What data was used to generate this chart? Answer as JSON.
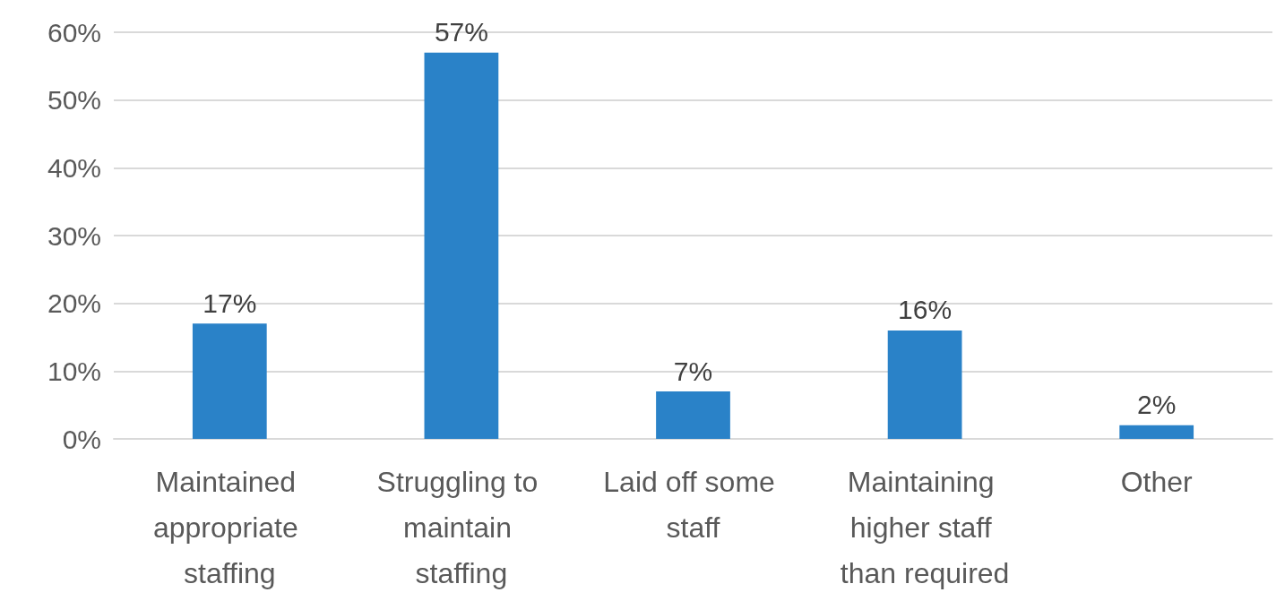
{
  "chart_data": {
    "type": "bar",
    "categories": [
      "Maintained appropriate staffing",
      "Struggling to maintain staffing",
      "Laid off some staff",
      "Maintaining higher staff than required",
      "Other"
    ],
    "values": [
      17,
      57,
      7,
      16,
      2
    ],
    "color": "#2a82c8",
    "value_labels": [
      "17%",
      "57%",
      "7%",
      "16%",
      "2%"
    ],
    "ylim": [
      0,
      60
    ],
    "yticks": [
      {
        "value": 0,
        "label": "0%"
      },
      {
        "value": 10,
        "label": "10%"
      },
      {
        "value": 20,
        "label": "20%"
      },
      {
        "value": 30,
        "label": "30%"
      },
      {
        "value": 40,
        "label": "40%"
      },
      {
        "value": 50,
        "label": "50%"
      },
      {
        "value": 60,
        "label": "60%"
      }
    ],
    "grid": "y"
  }
}
